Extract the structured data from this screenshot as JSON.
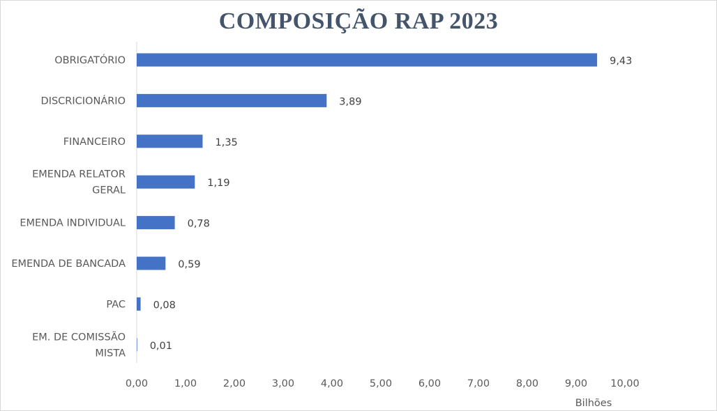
{
  "chart_data": {
    "type": "bar",
    "orientation": "horizontal",
    "title": "COMPOSIÇÃO RAP 2023",
    "xlabel": "Bilhões",
    "ylabel": "",
    "xlim": [
      0,
      10
    ],
    "x_ticks": [
      "0,00",
      "1,00",
      "2,00",
      "3,00",
      "4,00",
      "5,00",
      "6,00",
      "7,00",
      "8,00",
      "9,00",
      "10,00"
    ],
    "grid": false,
    "legend": "none",
    "bar_color": "#4472c4",
    "categories": [
      [
        "OBRIGATÓRIO"
      ],
      [
        "DISCRICIONÁRIO"
      ],
      [
        "FINANCEIRO"
      ],
      [
        "EMENDA RELATOR",
        "GERAL"
      ],
      [
        "EMENDA INDIVIDUAL"
      ],
      [
        "EMENDA DE BANCADA"
      ],
      [
        "PAC"
      ],
      [
        "EM. DE COMISSÃO",
        "MISTA"
      ]
    ],
    "values": [
      9.43,
      3.89,
      1.35,
      1.19,
      0.78,
      0.59,
      0.08,
      0.01
    ],
    "value_labels": [
      "9,43",
      "3,89",
      "1,35",
      "1,19",
      "0,78",
      "0,59",
      "0,08",
      "0,01"
    ]
  }
}
